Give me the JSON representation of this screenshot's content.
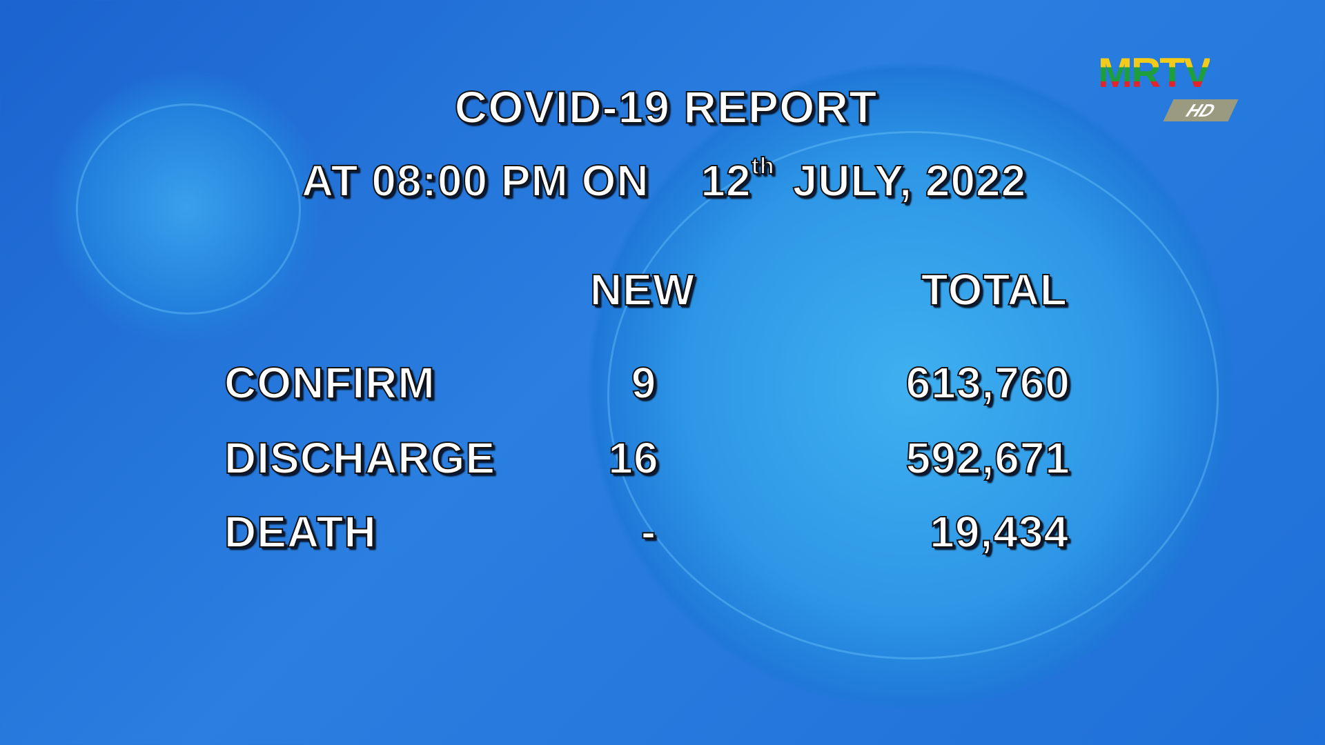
{
  "logo": {
    "brand": "MRTV",
    "badge": "HD",
    "colors": [
      "#f5cb1a",
      "#1e9e3c",
      "#e2242a"
    ]
  },
  "report": {
    "title": "COVID-19 REPORT",
    "date_prefix": "AT 08:00 PM ON",
    "day": "12",
    "day_suffix": "th",
    "month_year": "JULY, 2022",
    "headers": {
      "new": "NEW",
      "total": "TOTAL"
    },
    "rows": [
      {
        "label": "CONFIRM",
        "new": "9",
        "total": "613,760"
      },
      {
        "label": "DISCHARGE",
        "new": "16",
        "total": "592,671"
      },
      {
        "label": "DEATH",
        "new": "-",
        "total": "19,434"
      }
    ]
  }
}
